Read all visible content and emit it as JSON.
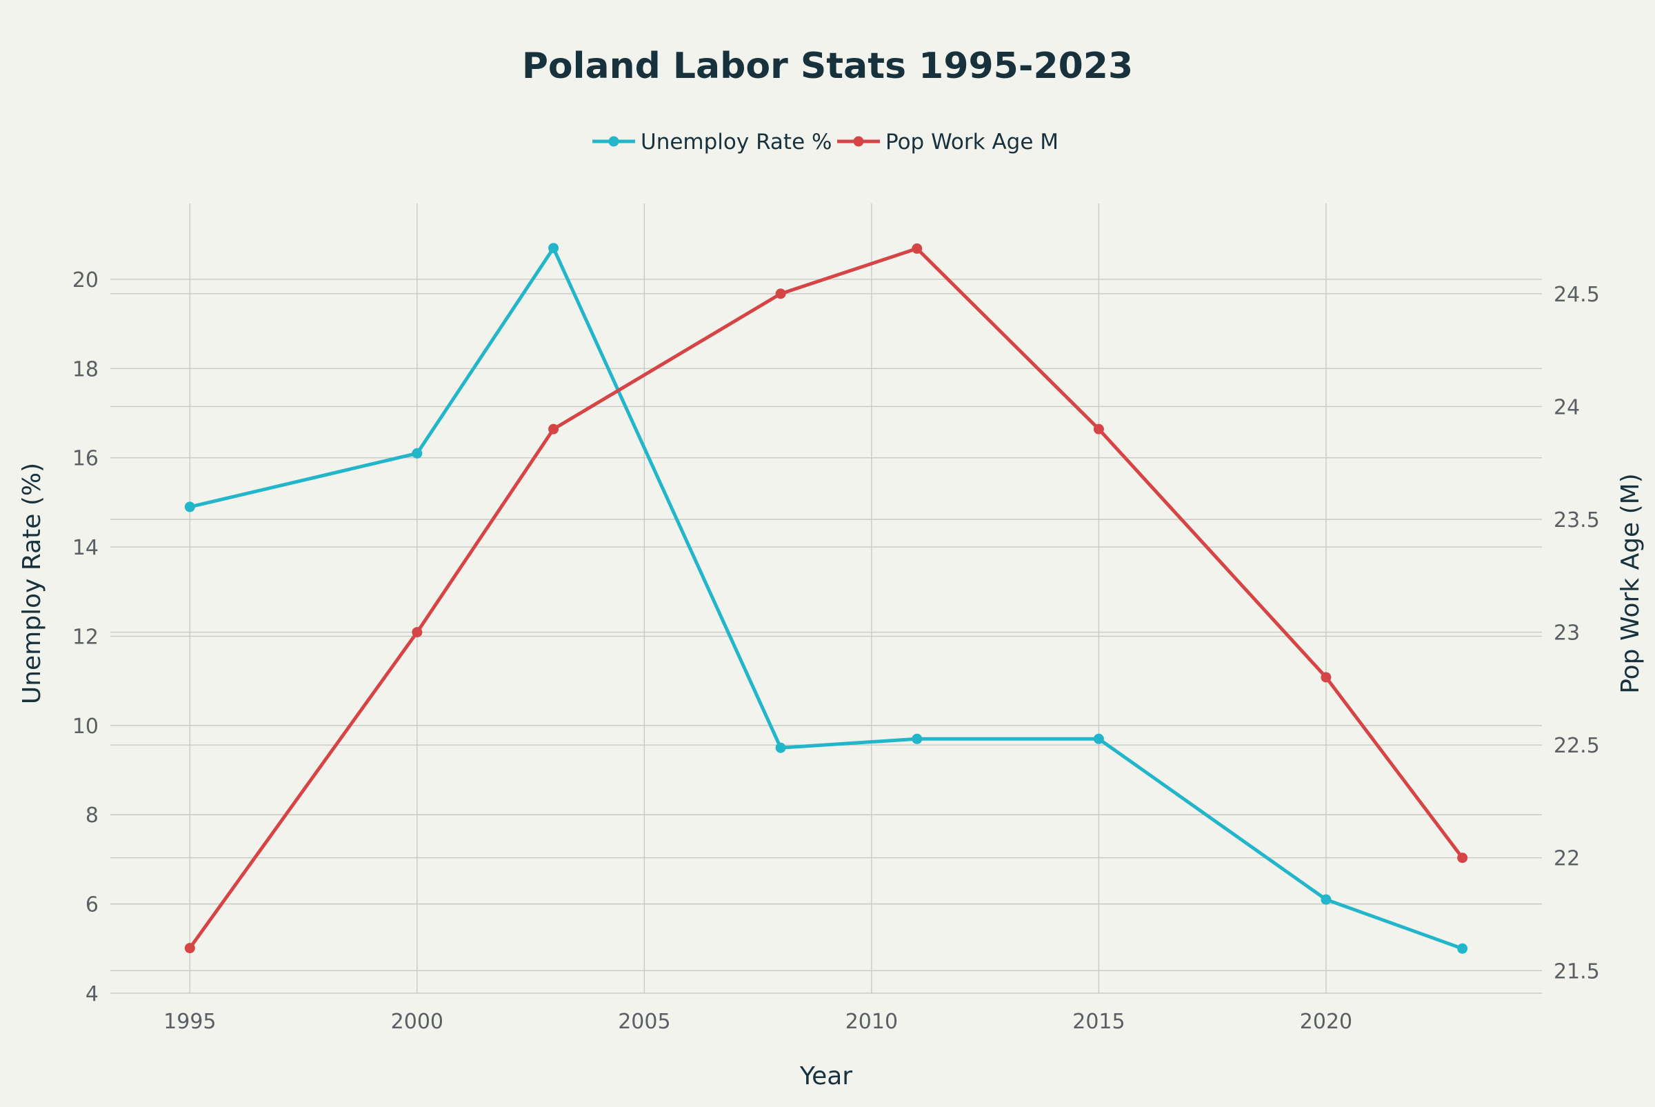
{
  "chart_data": {
    "type": "line",
    "title": "Poland Labor Stats 1995-2023",
    "xlabel": "Year",
    "ylabel": "Unemploy Rate (%)",
    "y2label": "Pop Work Age (M)",
    "x": [
      1995,
      2000,
      2003,
      2008,
      2011,
      2015,
      2020,
      2023
    ],
    "xlim": [
      1993.25,
      2024.75
    ],
    "x_ticks": [
      1995,
      2000,
      2005,
      2010,
      2015,
      2020
    ],
    "ylim": [
      4,
      21.7
    ],
    "y_ticks": [
      4,
      6,
      8,
      10,
      12,
      14,
      16,
      18,
      20
    ],
    "y2lim": [
      21.4,
      24.9
    ],
    "y2_ticks": [
      21.5,
      22,
      22.5,
      23,
      23.5,
      24,
      24.5
    ],
    "grid": true,
    "legend_position": "top-center",
    "series": [
      {
        "name": "Unemploy Rate %",
        "axis": "left",
        "color": "#23b5c9",
        "values": [
          14.9,
          16.1,
          20.7,
          9.5,
          9.7,
          9.7,
          6.1,
          5.0
        ]
      },
      {
        "name": "Pop Work Age M",
        "axis": "right",
        "color": "#d64545",
        "values": [
          21.6,
          23.0,
          23.9,
          24.5,
          24.7,
          23.9,
          22.8,
          22.0
        ]
      }
    ]
  }
}
